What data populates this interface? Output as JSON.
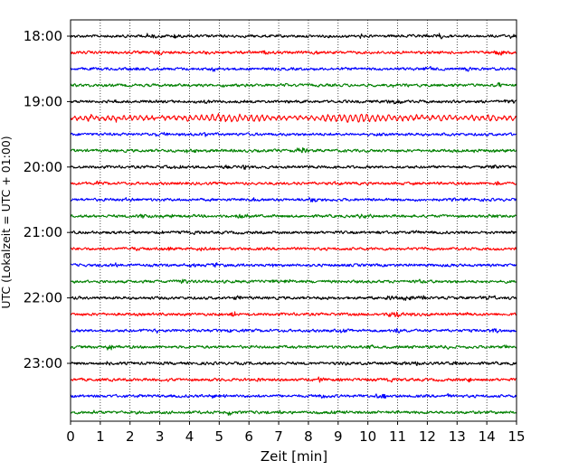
{
  "chart_data": {
    "type": "line",
    "title": "",
    "xlabel": "Zeit  [min]",
    "ylabel": "UTC (Lokalzeit = UTC + 01:00)",
    "xlim": [
      0,
      15
    ],
    "x_ticks": [
      "0",
      "1",
      "2",
      "3",
      "4",
      "5",
      "6",
      "7",
      "8",
      "9",
      "10",
      "11",
      "12",
      "13",
      "14",
      "15"
    ],
    "y_ticks": [
      "18:00",
      "19:00",
      "20:00",
      "21:00",
      "22:00",
      "23:00"
    ],
    "grid": "vertical dotted",
    "trace_interval_min": 15,
    "traces": [
      {
        "start": "18:00",
        "color": "#000000"
      },
      {
        "start": "18:15",
        "color": "#ff0000"
      },
      {
        "start": "18:30",
        "color": "#0000ff"
      },
      {
        "start": "18:45",
        "color": "#008000"
      },
      {
        "start": "19:00",
        "color": "#000000"
      },
      {
        "start": "19:15",
        "color": "#ff0000",
        "note": "regional oscillation"
      },
      {
        "start": "19:30",
        "color": "#0000ff"
      },
      {
        "start": "19:45",
        "color": "#008000"
      },
      {
        "start": "20:00",
        "color": "#000000"
      },
      {
        "start": "20:15",
        "color": "#ff0000"
      },
      {
        "start": "20:30",
        "color": "#0000ff"
      },
      {
        "start": "20:45",
        "color": "#008000"
      },
      {
        "start": "21:00",
        "color": "#000000"
      },
      {
        "start": "21:15",
        "color": "#ff0000"
      },
      {
        "start": "21:30",
        "color": "#0000ff"
      },
      {
        "start": "21:45",
        "color": "#008000"
      },
      {
        "start": "22:00",
        "color": "#000000"
      },
      {
        "start": "22:15",
        "color": "#ff0000"
      },
      {
        "start": "22:30",
        "color": "#0000ff"
      },
      {
        "start": "22:45",
        "color": "#008000"
      },
      {
        "start": "23:00",
        "color": "#000000"
      },
      {
        "start": "23:15",
        "color": "#ff0000"
      },
      {
        "start": "23:30",
        "color": "#0000ff"
      },
      {
        "start": "23:45",
        "color": "#008000"
      }
    ]
  }
}
